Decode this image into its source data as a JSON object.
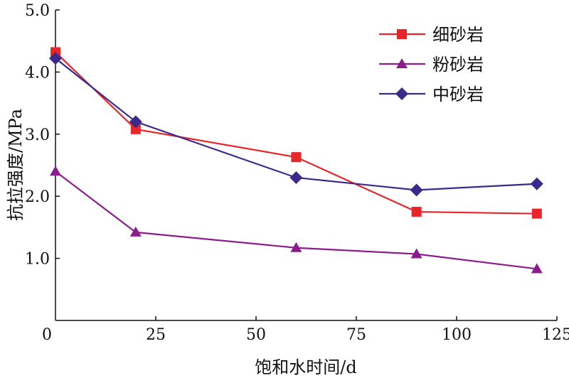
{
  "chart_data": {
    "type": "line",
    "title": "",
    "xlabel": "饱和水时间/d",
    "ylabel": "抗拉强度/MPa",
    "xlim": [
      0,
      125
    ],
    "ylim": [
      0,
      5.0
    ],
    "x_ticks": [
      25,
      50,
      75,
      100,
      125
    ],
    "x_tick_labels": [
      "25",
      "50",
      "75",
      "100",
      "125"
    ],
    "y_ticks": [
      1.0,
      2.0,
      3.0,
      4.0,
      5.0
    ],
    "y_tick_labels": [
      "1.0",
      "2.0",
      "3.0",
      "4.0",
      "5.0"
    ],
    "origin_label": "0",
    "grid": false,
    "legend_position": "top-right",
    "x": [
      0,
      20,
      60,
      90,
      120
    ],
    "series": [
      {
        "name": "细砂岩",
        "marker": "square",
        "color": "#e8262a",
        "values": [
          4.32,
          3.08,
          2.63,
          1.75,
          1.72
        ]
      },
      {
        "name": "粉砂岩",
        "marker": "triangle",
        "color": "#8c1d8c",
        "values": [
          2.4,
          1.42,
          1.17,
          1.07,
          0.83
        ]
      },
      {
        "name": "中砂岩",
        "marker": "diamond",
        "color": "#3b2a8c",
        "values": [
          4.22,
          3.2,
          2.3,
          2.1,
          2.2
        ]
      }
    ]
  }
}
